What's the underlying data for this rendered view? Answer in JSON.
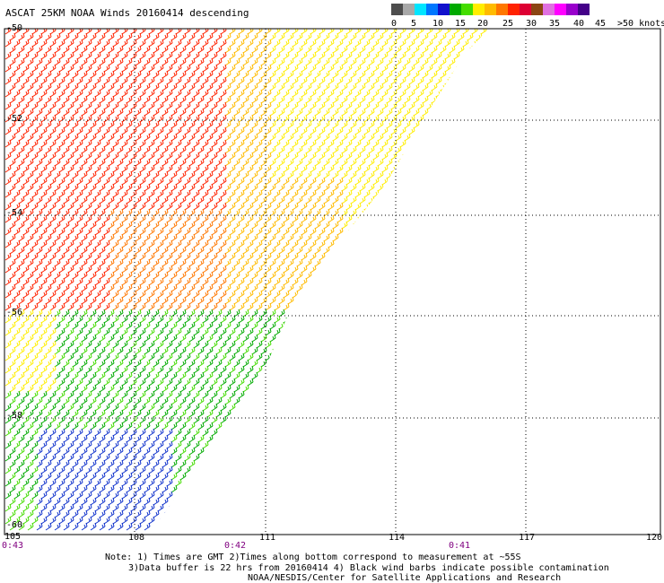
{
  "title": "ASCAT 25KM NOAA Winds 20160414 descending",
  "legend": {
    "colors": [
      "#4d4d4d",
      "#a8a8a8",
      "#00e5ff",
      "#0077ff",
      "#1111cc",
      "#00aa00",
      "#44dd00",
      "#ffee00",
      "#ffbb00",
      "#ff7700",
      "#ff2200",
      "#dd0033",
      "#8b4513",
      "#e070e0",
      "#ff00ff",
      "#9900cc",
      "#440088"
    ],
    "labels": [
      "0",
      "5",
      "10",
      "15",
      "20",
      "25",
      "30",
      "35",
      "40",
      "45",
      ">50 knots"
    ]
  },
  "axes": {
    "x_ticks": [
      "105",
      "108",
      "111",
      "114",
      "117",
      "120"
    ],
    "y_ticks": [
      "-50",
      "-52",
      "-54",
      "-56",
      "-58",
      "-60"
    ]
  },
  "times": {
    "t1": "0:43",
    "t2": "0:42",
    "t3": "0:41"
  },
  "notes": {
    "line1": "Note: 1) Times are GMT 2)Times along bottom correspond to measurement at ~55S",
    "line2": "3)Data buffer is 22 hrs from 20160414 4) Black wind barbs indicate possible contamination",
    "line3": "NOAA/NESDIS/Center for Satellite Applications and Research"
  }
}
